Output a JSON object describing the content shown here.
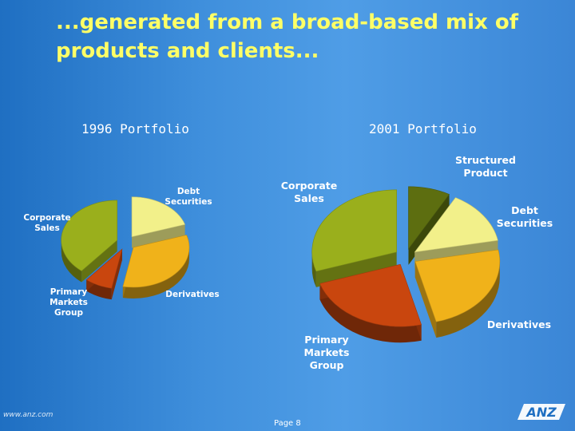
{
  "slide": {
    "title_line1": "...generated from a broad-based mix of",
    "title_line2": "products and clients...",
    "page_label": "Page 8",
    "footer_url": "www.anz.com",
    "logo_text": "ANZ"
  },
  "colors": {
    "title": "#ffff66",
    "background": "#3f8fdc",
    "debt_securities": "#f2f08a",
    "derivatives": "#f0b21a",
    "primary_markets_group": "#c9460e",
    "corporate_sales": "#9aaf1c",
    "structured_product": "#5d6e10"
  },
  "chart_data": [
    {
      "type": "pie",
      "title": "1996 Portfolio",
      "slices": [
        {
          "label": "Debt Securities",
          "label_lines": [
            "Debt",
            "Securities"
          ],
          "value": 20,
          "color": "#f2f08a"
        },
        {
          "label": "Derivatives",
          "label_lines": [
            "Derivatives"
          ],
          "value": 33,
          "color": "#f0b21a"
        },
        {
          "label": "Primary Markets Group",
          "label_lines": [
            "Primary",
            "Markets",
            "Group"
          ],
          "value": 8,
          "color": "#c9460e"
        },
        {
          "label": "Corporate Sales",
          "label_lines": [
            "Corporate",
            "Sales"
          ],
          "value": 39,
          "color": "#9aaf1c"
        }
      ]
    },
    {
      "type": "pie",
      "title": "2001 Portfolio",
      "slices": [
        {
          "label": "Structured Product",
          "label_lines": [
            "Structured",
            "Product"
          ],
          "value": 8,
          "color": "#5d6e10"
        },
        {
          "label": "Debt Securities",
          "label_lines": [
            "Debt",
            "Securities"
          ],
          "value": 14,
          "color": "#f2f08a"
        },
        {
          "label": "Derivatives",
          "label_lines": [
            "Derivatives"
          ],
          "value": 24,
          "color": "#f0b21a"
        },
        {
          "label": "Primary Markets Group",
          "label_lines": [
            "Primary",
            "Markets",
            "Group"
          ],
          "value": 24,
          "color": "#c9460e"
        },
        {
          "label": "Corporate Sales",
          "label_lines": [
            "Corporate",
            "Sales"
          ],
          "value": 30,
          "color": "#9aaf1c"
        }
      ]
    }
  ]
}
